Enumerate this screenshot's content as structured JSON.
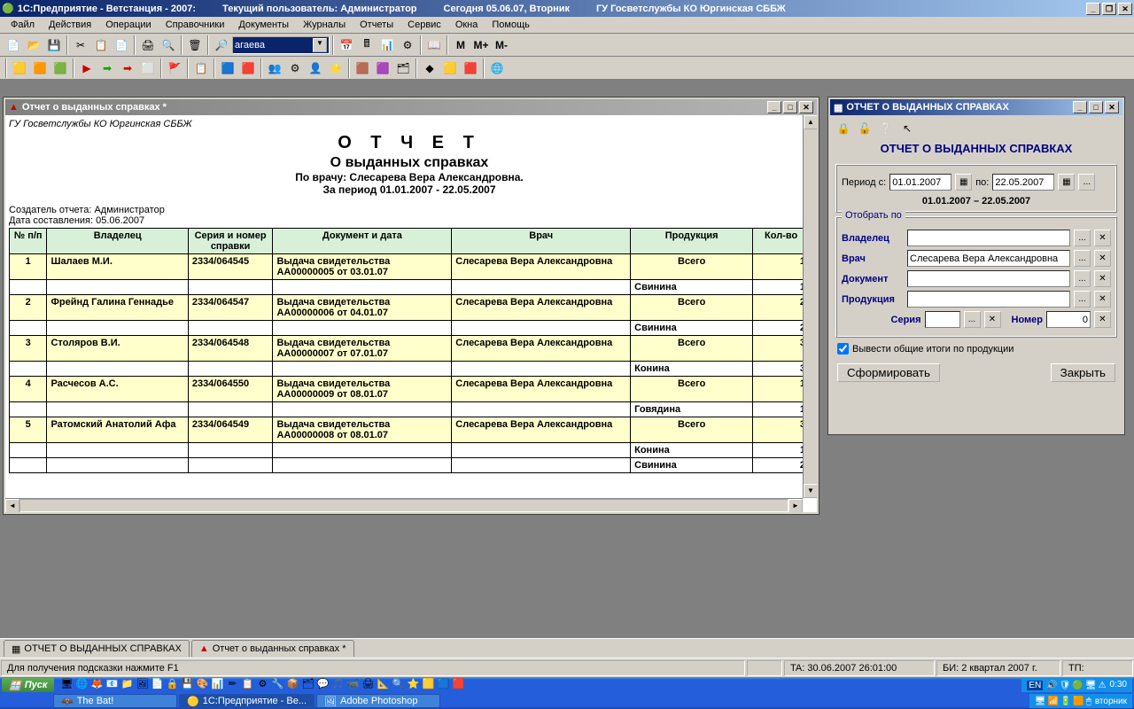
{
  "titlebar": {
    "app": "1С:Предприятие - Ветстанция - 2007:",
    "user": "Текущий пользователь: Администратор",
    "today": "Сегодня 05.06.07, Вторник",
    "org": "ГУ Госветслужбы КО Юргинская СББЖ"
  },
  "menu": [
    "Файл",
    "Действия",
    "Операции",
    "Справочники",
    "Документы",
    "Журналы",
    "Отчеты",
    "Сервис",
    "Окна",
    "Помощь"
  ],
  "combo_value": "агаева",
  "toolbar_alpha": [
    "М",
    "М+",
    "М-"
  ],
  "report_window": {
    "title": "Отчет о выданных справках  *",
    "org": "ГУ Госветслужбы КО Юргинская СББЖ",
    "t1": "О Т Ч Е Т",
    "t2": "О выданных справках",
    "by": "По врачу: Слесарева Вера Александровна.",
    "period": "За период 01.01.2007 - 22.05.2007",
    "creator": "Создатель отчета: Администратор",
    "date": "Дата составления: 05.06.2007",
    "headers": [
      "№ п/п",
      "Владелец",
      "Серия и номер справки",
      "Документ и дата",
      "Врач",
      "Продукция",
      "Кол-во"
    ],
    "rows": [
      {
        "n": "1",
        "owner": "Шалаев М.И.",
        "serial": "2334/064545",
        "doc": "Выдача свидетельства АА00000005 от 03.01.07",
        "doctor": "Слесарева Вера Александровна",
        "total": "Всего",
        "qty": "1",
        "sub": [
          {
            "prod": "Свинина",
            "qty": "1"
          }
        ]
      },
      {
        "n": "2",
        "owner": "Фрейнд Галина Геннадье",
        "serial": "2334/064547",
        "doc": "Выдача свидетельства АА00000006 от 04.01.07",
        "doctor": "Слесарева Вера Александровна",
        "total": "Всего",
        "qty": "2",
        "sub": [
          {
            "prod": "Свинина",
            "qty": "2"
          }
        ]
      },
      {
        "n": "3",
        "owner": "Столяров В.И.",
        "serial": "2334/064548",
        "doc": "Выдача свидетельства АА00000007 от 07.01.07",
        "doctor": "Слесарева Вера Александровна",
        "total": "Всего",
        "qty": "3",
        "sub": [
          {
            "prod": "Конина",
            "qty": "3"
          }
        ]
      },
      {
        "n": "4",
        "owner": "Расчесов А.С.",
        "serial": "2334/064550",
        "doc": "Выдача свидетельства АА00000009 от 08.01.07",
        "doctor": "Слесарева Вера Александровна",
        "total": "Всего",
        "qty": "1",
        "sub": [
          {
            "prod": "Говядина",
            "qty": "1"
          }
        ]
      },
      {
        "n": "5",
        "owner": "Ратомский Анатолий Афа",
        "serial": "2334/064549",
        "doc": "Выдача свидетельства АА00000008 от 08.01.07",
        "doctor": "Слесарева Вера Александровна",
        "total": "Всего",
        "qty": "3",
        "sub": [
          {
            "prod": "Конина",
            "qty": "1"
          },
          {
            "prod": "Свинина",
            "qty": "2"
          }
        ]
      }
    ]
  },
  "filter_window": {
    "title": "ОТЧЕТ О ВЫДАННЫХ СПРАВКАХ",
    "heading": "ОТЧЕТ О ВЫДАННЫХ СПРАВКАХ",
    "period_from_label": "Период с:",
    "period_from": "01.01.2007",
    "period_to_label": "по:",
    "period_to": "22.05.2007",
    "period_display": "01.01.2007 – 22.05.2007",
    "group_label": "Отобрать по",
    "owner_label": "Владелец",
    "owner_value": "",
    "doctor_label": "Врач",
    "doctor_value": "Слесарева Вера Александровна",
    "doc_label": "Документ",
    "doc_value": "",
    "prod_label": "Продукция",
    "prod_value": "",
    "serial_label": "Серия",
    "serial_value": "",
    "number_label": "Номер",
    "number_value": "0",
    "check_label": "Вывести общие итоги по продукции",
    "btn_run": "Сформировать",
    "btn_close": "Закрыть"
  },
  "wintabs": {
    "tab1": "ОТЧЕТ О ВЫДАННЫХ СПРАВКАХ",
    "tab2": "Отчет о выданных справках  *"
  },
  "status": {
    "hint": "Для получения подсказки нажмите F1",
    "ta": "TA: 30.06.2007 26:01:00",
    "bi": "БИ: 2 квартал 2007 г.",
    "tp": "ТП:"
  },
  "taskbar": {
    "start": "Пуск",
    "lang": "EN",
    "time": "0:30",
    "day": "вторник",
    "tasks": [
      "The Bat!",
      "1С:Предприятие - Ве...",
      "Adobe Photoshop"
    ]
  }
}
